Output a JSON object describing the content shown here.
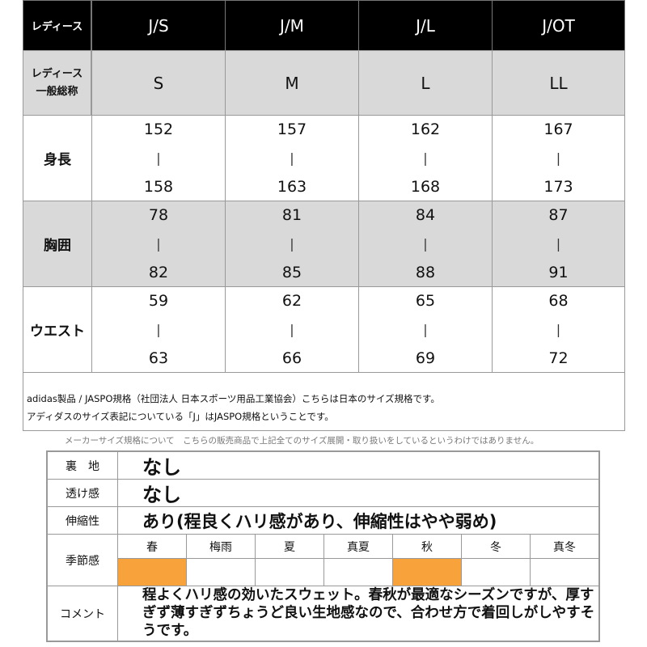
{
  "size_table": {
    "corner": "レディース",
    "sizes": [
      "J/S",
      "J/M",
      "J/L",
      "J/OT"
    ],
    "general_label": [
      "レディース",
      "一般総称"
    ],
    "general_sizes": [
      "S",
      "M",
      "L",
      "LL"
    ],
    "separator": "|",
    "rows": [
      {
        "label": "身長",
        "ranges": [
          [
            152,
            158
          ],
          [
            157,
            163
          ],
          [
            162,
            168
          ],
          [
            167,
            173
          ]
        ]
      },
      {
        "label": "胸囲",
        "ranges": [
          [
            78,
            82
          ],
          [
            81,
            85
          ],
          [
            84,
            88
          ],
          [
            87,
            91
          ]
        ]
      },
      {
        "label": "ウエスト",
        "ranges": [
          [
            59,
            63
          ],
          [
            62,
            66
          ],
          [
            65,
            69
          ],
          [
            68,
            72
          ]
        ]
      }
    ],
    "notes": [
      "adidas製品 / JASPO規格（社団法人 日本スポーツ用品工業協会）こちらは日本のサイズ規格です。",
      "アディダスのサイズ表記についている「J」はJASPO規格ということです。"
    ]
  },
  "disclaimer": "メーカーサイズ規格について　こちらの販売商品で上記全てのサイズ展開・取り扱いをしているというわけではありません。",
  "attributes": {
    "rows": [
      {
        "label": "裏　地",
        "value": "なし"
      },
      {
        "label": "透け感",
        "value": "なし"
      },
      {
        "label": "伸縮性",
        "value": "あり(程良くハリ感があり、伸縮性はやや弱め)"
      }
    ],
    "season": {
      "label": "季節感",
      "color": "#f7a23a",
      "options": [
        {
          "name": "春",
          "selected": true
        },
        {
          "name": "梅雨",
          "selected": false
        },
        {
          "name": "夏",
          "selected": false
        },
        {
          "name": "真夏",
          "selected": false
        },
        {
          "name": "秋",
          "selected": true
        },
        {
          "name": "冬",
          "selected": false
        },
        {
          "name": "真冬",
          "selected": false
        }
      ]
    },
    "comment": {
      "label": "コメント",
      "text": "程よくハリ感の効いたスウェット。春秋が最適なシーズンですが、厚すぎず薄すぎずちょうど良い生地感なので、合わせ方で着回しがしやすそうです。"
    }
  }
}
